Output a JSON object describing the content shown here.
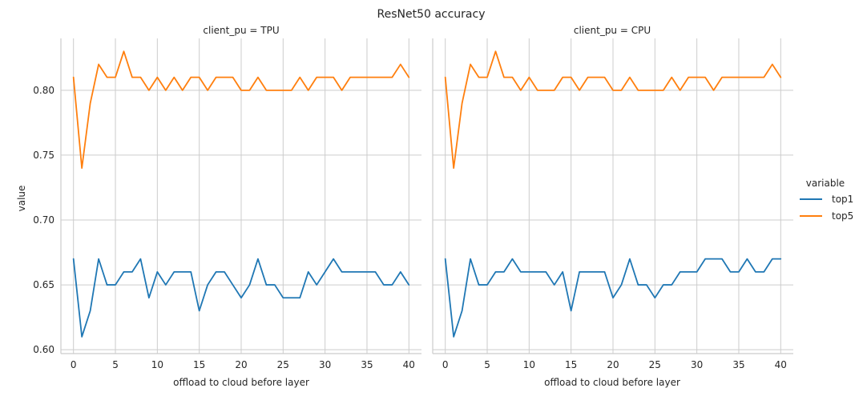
{
  "chart_data": {
    "type": "line",
    "title": "ResNet50 accuracy",
    "xlabel": "offload to cloud before layer",
    "ylabel": "value",
    "xlim": [
      -1.5,
      41.5
    ],
    "ylim": [
      0.597,
      0.84
    ],
    "xticks": [
      0,
      5,
      10,
      15,
      20,
      25,
      30,
      35,
      40
    ],
    "yticks": [
      0.6,
      0.65,
      0.7,
      0.75,
      0.8
    ],
    "ytick_labels": [
      "0.60",
      "0.65",
      "0.70",
      "0.75",
      "0.80"
    ],
    "grid": true,
    "legend": {
      "title": "variable",
      "position": "right",
      "entries": [
        "top1",
        "top5"
      ]
    },
    "colors": {
      "top1": "#1f77b4",
      "top5": "#ff7f0e",
      "grid": "#cccccc"
    },
    "x": [
      0,
      1,
      2,
      3,
      4,
      5,
      6,
      7,
      8,
      9,
      10,
      11,
      12,
      13,
      14,
      15,
      16,
      17,
      18,
      19,
      20,
      21,
      22,
      23,
      24,
      25,
      26,
      27,
      28,
      29,
      30,
      31,
      32,
      33,
      34,
      35,
      36,
      37,
      38,
      39,
      40
    ],
    "panels": [
      {
        "title": "client_pu = TPU",
        "series": [
          {
            "name": "top1",
            "values": [
              0.67,
              0.61,
              0.63,
              0.67,
              0.65,
              0.65,
              0.66,
              0.66,
              0.67,
              0.64,
              0.66,
              0.65,
              0.66,
              0.66,
              0.66,
              0.63,
              0.65,
              0.66,
              0.66,
              0.65,
              0.64,
              0.65,
              0.67,
              0.65,
              0.65,
              0.64,
              0.64,
              0.64,
              0.66,
              0.65,
              0.66,
              0.67,
              0.66,
              0.66,
              0.66,
              0.66,
              0.66,
              0.65,
              0.65,
              0.66,
              0.65
            ]
          },
          {
            "name": "top5",
            "values": [
              0.81,
              0.74,
              0.79,
              0.82,
              0.81,
              0.81,
              0.83,
              0.81,
              0.81,
              0.8,
              0.81,
              0.8,
              0.81,
              0.8,
              0.81,
              0.81,
              0.8,
              0.81,
              0.81,
              0.81,
              0.8,
              0.8,
              0.81,
              0.8,
              0.8,
              0.8,
              0.8,
              0.81,
              0.8,
              0.81,
              0.81,
              0.81,
              0.8,
              0.81,
              0.81,
              0.81,
              0.81,
              0.81,
              0.81,
              0.82,
              0.81
            ]
          }
        ]
      },
      {
        "title": "client_pu = CPU",
        "series": [
          {
            "name": "top1",
            "values": [
              0.67,
              0.61,
              0.63,
              0.67,
              0.65,
              0.65,
              0.66,
              0.66,
              0.67,
              0.66,
              0.66,
              0.66,
              0.66,
              0.65,
              0.66,
              0.63,
              0.66,
              0.66,
              0.66,
              0.66,
              0.64,
              0.65,
              0.67,
              0.65,
              0.65,
              0.64,
              0.65,
              0.65,
              0.66,
              0.66,
              0.66,
              0.67,
              0.67,
              0.67,
              0.66,
              0.66,
              0.67,
              0.66,
              0.66,
              0.67,
              0.67
            ]
          },
          {
            "name": "top5",
            "values": [
              0.81,
              0.74,
              0.79,
              0.82,
              0.81,
              0.81,
              0.83,
              0.81,
              0.81,
              0.8,
              0.81,
              0.8,
              0.8,
              0.8,
              0.81,
              0.81,
              0.8,
              0.81,
              0.81,
              0.81,
              0.8,
              0.8,
              0.81,
              0.8,
              0.8,
              0.8,
              0.8,
              0.81,
              0.8,
              0.81,
              0.81,
              0.81,
              0.8,
              0.81,
              0.81,
              0.81,
              0.81,
              0.81,
              0.81,
              0.82,
              0.81
            ]
          }
        ]
      }
    ]
  }
}
